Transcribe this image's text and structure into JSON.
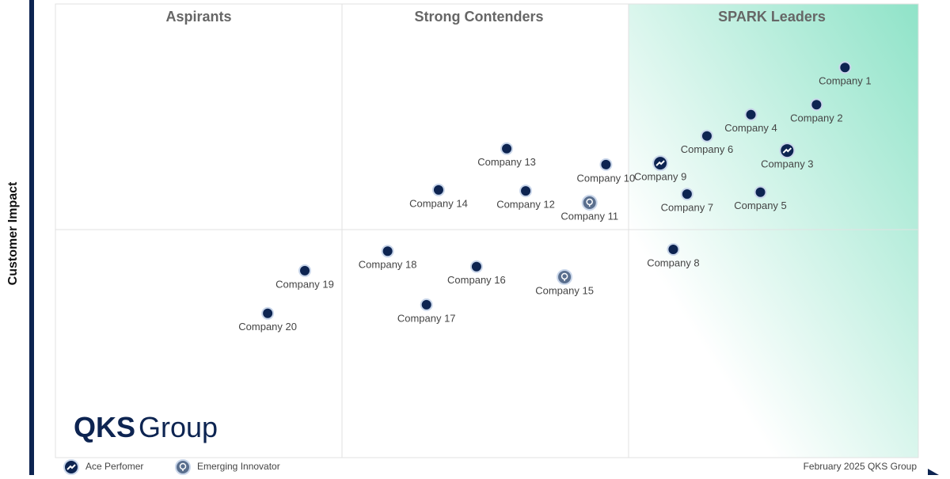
{
  "chart_data": {
    "type": "scatter",
    "y_label": "Customer Impact",
    "quadrant_labels": [
      "Aspirants",
      "Strong Contenders",
      "SPARK Leaders"
    ],
    "xlim": [
      0,
      100
    ],
    "ylim": [
      0,
      100
    ],
    "color": "#0d2451",
    "points": [
      {
        "label": "Company 1",
        "x": 91.5,
        "y": 86.0
      },
      {
        "label": "Company 2",
        "x": 88.2,
        "y": 77.8
      },
      {
        "label": "Company 3",
        "x": 84.8,
        "y": 67.7,
        "badge": "ace"
      },
      {
        "label": "Company 4",
        "x": 80.6,
        "y": 75.6
      },
      {
        "label": "Company 5",
        "x": 81.7,
        "y": 58.5
      },
      {
        "label": "Company 6",
        "x": 75.5,
        "y": 70.9
      },
      {
        "label": "Company 7",
        "x": 73.2,
        "y": 58.1
      },
      {
        "label": "Company 8",
        "x": 71.6,
        "y": 45.9
      },
      {
        "label": "Company 9",
        "x": 70.1,
        "y": 64.9,
        "badge": "ace"
      },
      {
        "label": "Company 10",
        "x": 63.8,
        "y": 64.6
      },
      {
        "label": "Company 11",
        "x": 61.9,
        "y": 56.2,
        "badge": "emerging"
      },
      {
        "label": "Company 12",
        "x": 54.5,
        "y": 58.8
      },
      {
        "label": "Company 13",
        "x": 52.3,
        "y": 68.1
      },
      {
        "label": "Company 14",
        "x": 44.4,
        "y": 59.0
      },
      {
        "label": "Company 15",
        "x": 59.0,
        "y": 39.8,
        "badge": "emerging"
      },
      {
        "label": "Company 16",
        "x": 48.8,
        "y": 42.1
      },
      {
        "label": "Company 17",
        "x": 43.0,
        "y": 33.7
      },
      {
        "label": "Company 18",
        "x": 38.5,
        "y": 45.5
      },
      {
        "label": "Company 19",
        "x": 28.9,
        "y": 41.2
      },
      {
        "label": "Company 20",
        "x": 24.6,
        "y": 31.8
      }
    ],
    "legend": [
      {
        "name": "Ace Perfomer",
        "symbol": "ace"
      },
      {
        "name": "Emerging Innovator",
        "symbol": "emerging"
      }
    ],
    "logo": {
      "bold": "QKS",
      "rest": "Group"
    },
    "footer": "February 2025  QKS Group"
  }
}
